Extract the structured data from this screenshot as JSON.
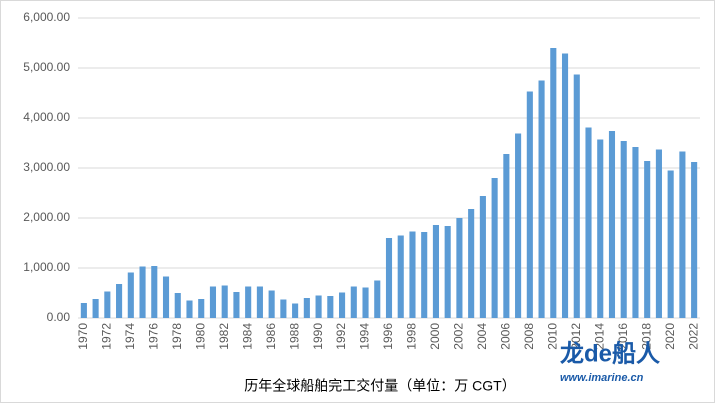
{
  "chart_data": {
    "type": "bar",
    "title": "历年全球船舶完工交付量（单位：万 CGT）",
    "categories": [
      "1970",
      null,
      "1972",
      null,
      "1974",
      null,
      "1976",
      null,
      "1978",
      null,
      "1980",
      null,
      "1982",
      null,
      "1984",
      null,
      "1986",
      null,
      "1988",
      null,
      "1990",
      null,
      "1992",
      null,
      "1994",
      null,
      "1996",
      null,
      "1998",
      null,
      "2000",
      null,
      "2002",
      null,
      "2004",
      null,
      "2006",
      null,
      "2008",
      null,
      "2010",
      null,
      "2012",
      null,
      "2014",
      null,
      "2016",
      null,
      "2018",
      null,
      "2020",
      null,
      "2022"
    ],
    "values": [
      300,
      380,
      530,
      680,
      910,
      1030,
      1040,
      830,
      500,
      350,
      380,
      630,
      650,
      520,
      630,
      630,
      550,
      370,
      290,
      400,
      450,
      440,
      510,
      630,
      610,
      750,
      1600,
      1650,
      1730,
      1720,
      1860,
      1840,
      2000,
      2180,
      2440,
      2800,
      3280,
      3690,
      4530,
      4750,
      5400,
      5290,
      4870,
      3810,
      3570,
      3740,
      3540,
      3420,
      3140,
      3370,
      2950,
      3330,
      3120
    ],
    "color": "#5b9bd5",
    "ylim": [
      0,
      6000
    ],
    "yticks": [
      {
        "value": 0,
        "label": "0.00"
      },
      {
        "value": 1000,
        "label": "1,000.00"
      },
      {
        "value": 2000,
        "label": "2,000.00"
      },
      {
        "value": 3000,
        "label": "3,000.00"
      },
      {
        "value": 4000,
        "label": "4,000.00"
      },
      {
        "value": 5000,
        "label": "5,000.00"
      },
      {
        "value": 6000,
        "label": "6,000.00"
      }
    ],
    "grid": true
  },
  "watermark": {
    "brand": "龙de船人",
    "url": "www.imarine.cn"
  }
}
